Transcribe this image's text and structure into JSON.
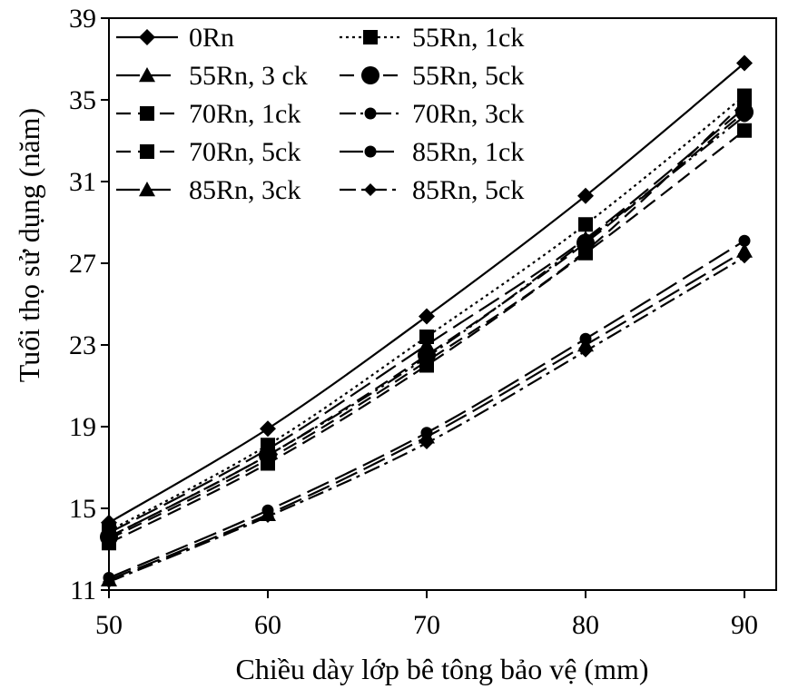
{
  "chart_data": {
    "type": "line",
    "title": "",
    "xlabel": "Chiều dày lớp bê tông bảo vệ (mm)",
    "ylabel": "Tuổi thọ sử dụng (năm)",
    "x": [
      50,
      60,
      70,
      80,
      90
    ],
    "xlim": [
      50,
      92
    ],
    "ylim": [
      11,
      39
    ],
    "xticks": [
      50,
      60,
      70,
      80,
      90
    ],
    "yticks": [
      11,
      15,
      19,
      23,
      27,
      31,
      35,
      39
    ],
    "xtick_labels": [
      "50",
      "60",
      "70",
      "80",
      "90"
    ],
    "ytick_labels": [
      "11",
      "15",
      "19",
      "23",
      "27",
      "31",
      "35",
      "39"
    ],
    "grid": false,
    "legend_position": "top-left",
    "series": [
      {
        "name": "0Rn",
        "values": [
          14.3,
          18.9,
          24.4,
          30.3,
          36.8
        ],
        "marker": "diamond",
        "dash": "solid"
      },
      {
        "name": "55Rn, 1ck",
        "values": [
          13.9,
          18.1,
          23.4,
          28.9,
          35.2
        ],
        "marker": "square",
        "dash": "dotted"
      },
      {
        "name": "55Rn, 3 ck",
        "values": [
          13.8,
          17.9,
          23.0,
          28.2,
          34.6
        ],
        "marker": "triangle",
        "dash": "longdash"
      },
      {
        "name": "55Rn, 5ck",
        "values": [
          13.6,
          17.6,
          22.5,
          28.0,
          34.4
        ],
        "marker": "circle",
        "dash": "dash"
      },
      {
        "name": "70Rn, 1ck",
        "values": [
          13.5,
          17.4,
          22.2,
          27.6,
          34.9
        ],
        "marker": "square",
        "dash": "dash"
      },
      {
        "name": "70Rn, 3ck",
        "values": [
          13.6,
          17.6,
          22.4,
          28.1,
          34.2
        ],
        "marker": "circle-small",
        "dash": "dashdotdot"
      },
      {
        "name": "70Rn, 5ck",
        "values": [
          13.3,
          17.2,
          22.0,
          27.5,
          33.5
        ],
        "marker": "square",
        "dash": "dash"
      },
      {
        "name": "85Rn, 1ck",
        "values": [
          11.6,
          14.9,
          18.7,
          23.3,
          28.1
        ],
        "marker": "circle-small",
        "dash": "longdash"
      },
      {
        "name": "85Rn, 3ck",
        "values": [
          11.5,
          14.7,
          18.5,
          23.0,
          27.6
        ],
        "marker": "triangle",
        "dash": "longdash"
      },
      {
        "name": "85Rn, 5ck",
        "values": [
          11.4,
          14.6,
          18.2,
          22.7,
          27.3
        ],
        "marker": "diamond-small",
        "dash": "dashdot"
      }
    ]
  }
}
